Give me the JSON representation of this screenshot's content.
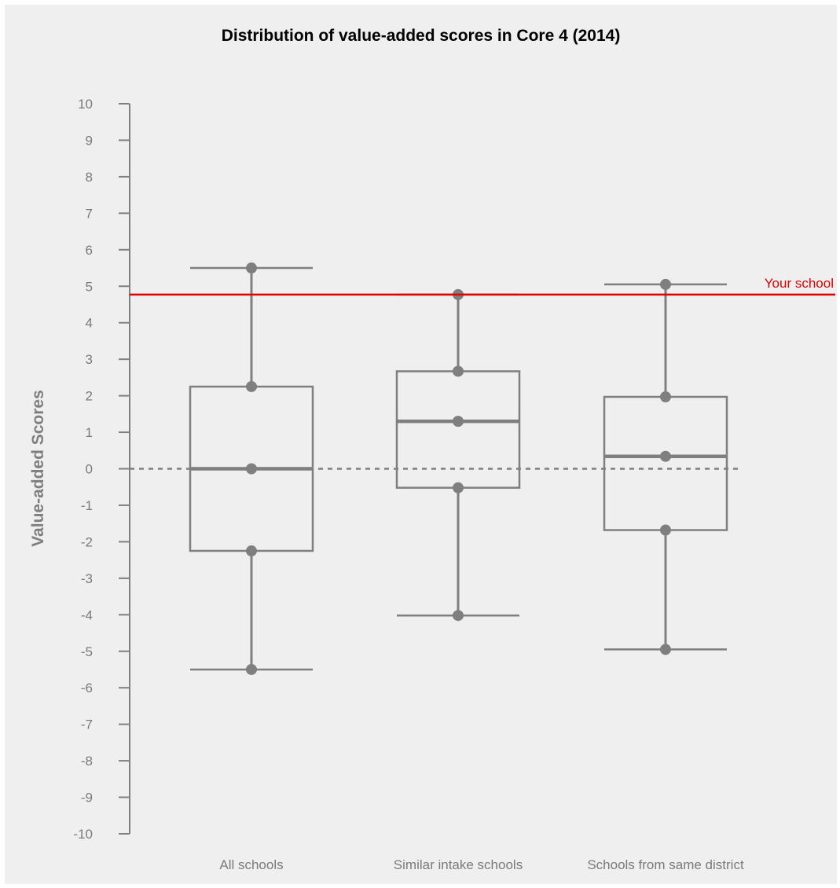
{
  "chart_data": {
    "type": "boxplot",
    "title": "Distribution of value-added scores in Core 4 (2014)",
    "ylabel": "Value-added Scores",
    "xlabel": "",
    "ylim": [
      -10,
      10
    ],
    "yticks": [
      10,
      9,
      8,
      7,
      6,
      5,
      4,
      3,
      2,
      1,
      0,
      -1,
      -2,
      -3,
      -4,
      -5,
      -6,
      -7,
      -8,
      -9,
      -10
    ],
    "categories": [
      "All schools",
      "Similar intake schools",
      "Schools from same district"
    ],
    "boxes": [
      {
        "min": -5.5,
        "q1": -2.25,
        "median": 0.0,
        "q3": 2.25,
        "max": 5.5,
        "markers": [
          5.5,
          2.25,
          0.0,
          -2.25,
          -5.5
        ]
      },
      {
        "min": -4.02,
        "q1": -0.52,
        "median": 1.3,
        "q3": 2.67,
        "max": 4.77,
        "markers": [
          4.77,
          2.67,
          1.3,
          -0.52,
          -4.02
        ]
      },
      {
        "min": -4.95,
        "q1": -1.68,
        "median": 0.34,
        "q3": 1.97,
        "max": 5.05,
        "markers": [
          5.05,
          1.97,
          0.34,
          -1.68,
          -4.95
        ]
      }
    ],
    "reference_line": {
      "value": 4.77,
      "label": "Your school",
      "color": "#e00000"
    },
    "zero_line": {
      "value": 0,
      "style": "dashed"
    },
    "colors": {
      "box": "#7f7f7f",
      "axis": "#7f7f7f",
      "background": "#efefef"
    }
  }
}
